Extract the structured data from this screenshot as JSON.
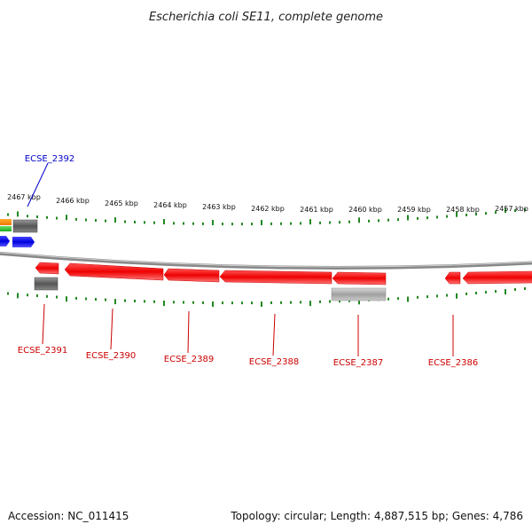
{
  "title": "Escherichia coli SE11, complete genome",
  "footer": {
    "accession": "Accession: NC_011415",
    "summary": "Topology: circular; Length: 4,887,515 bp; Genes: 4,786"
  },
  "colors": {
    "gene_forward_label": "#0000cc",
    "gene_reverse_label": "#cc0000",
    "cds": "#ff0000",
    "forward_blue": "#0000ff",
    "orange": "#ff8800",
    "green": "#33bb33",
    "gray_dark": "#666666",
    "gray_light": "#aaaaaa",
    "ticks": "#228822",
    "backbone": "#888888"
  },
  "ruler": {
    "labels": [
      "2467 kbp",
      "2466 kbp",
      "2465 kbp",
      "2464 kbp",
      "2463 kbp",
      "2462 kbp",
      "2461 kbp",
      "2460 kbp",
      "2459 kbp",
      "2458 kbp",
      "2457 kbp"
    ]
  },
  "genes": [
    {
      "label": "ECSE_2392",
      "strand": "+"
    },
    {
      "label": "ECSE_2391",
      "strand": "-"
    },
    {
      "label": "ECSE_2390",
      "strand": "-"
    },
    {
      "label": "ECSE_2389",
      "strand": "-"
    },
    {
      "label": "ECSE_2388",
      "strand": "-"
    },
    {
      "label": "ECSE_2387",
      "strand": "-"
    },
    {
      "label": "ECSE_2386",
      "strand": "-"
    }
  ]
}
